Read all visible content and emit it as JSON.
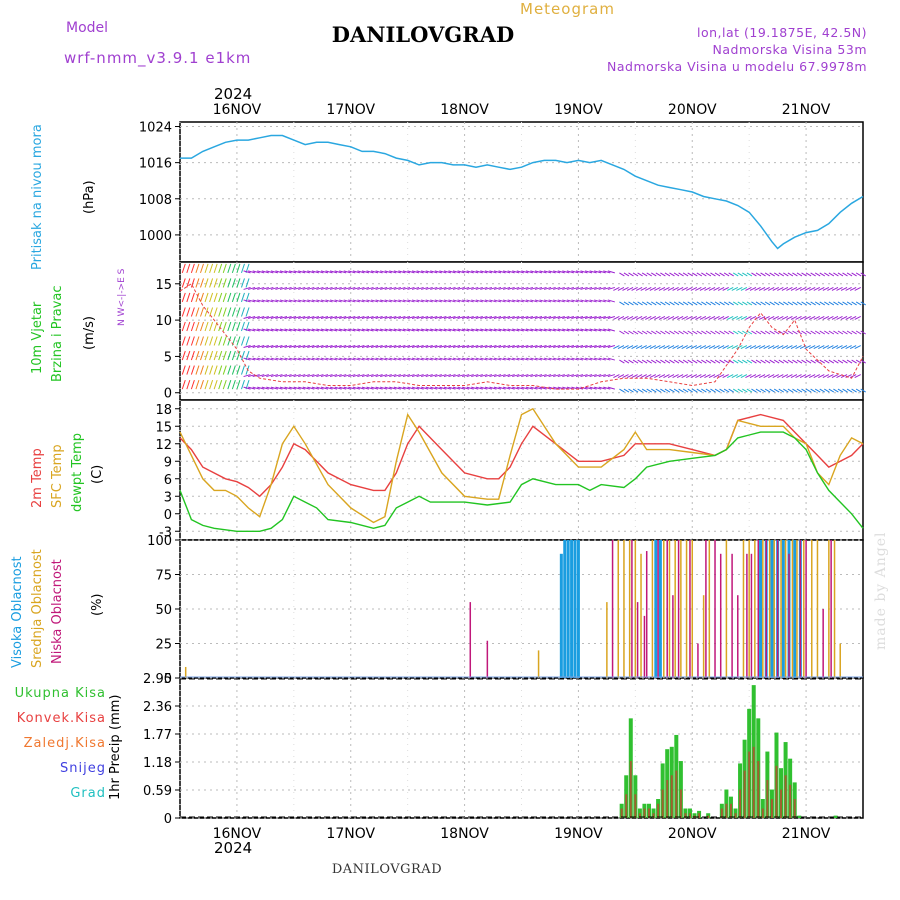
{
  "header": {
    "title": "DANILOVGRAD",
    "meteogram_label": "Meteogram",
    "model_label": "Model",
    "model_name": "wrf-nmm_v3.9.1 e1km",
    "location_coords": "lon,lat (19.1875E, 42.5N)",
    "elevation": "Nadmorska Visina 53m",
    "model_elevation": "Nadmorska Visina u modelu 67.9978m",
    "year_top": "2024",
    "year_bottom": "2024"
  },
  "footer": {
    "station_name": "DANILOVGRAD",
    "watermark": "made by Angel"
  },
  "colors": {
    "pressure": "#2aa7e0",
    "temp2m": "#e84040",
    "sfc_temp": "#d9a520",
    "dewpt": "#22c422",
    "high_cloud": "#1a9de0",
    "mid_cloud": "#d9a520",
    "low_cloud": "#c0187a",
    "total_precip": "#30c030",
    "conv_precip": "#e84040",
    "freezing": "#f07830",
    "snow": "#4040e0",
    "hail": "#20c0c0",
    "wind_purple": "#9b20d0"
  },
  "chart_data": [
    {
      "type": "line",
      "name": "pressure",
      "ylabel_main": "Pritisak na nivou mora",
      "ylabel_unit": "(hPa)",
      "yticks": [
        1000,
        1008,
        1016,
        1024
      ],
      "ylim": [
        994,
        1025
      ],
      "grid": true,
      "x_days": [
        "16NOV",
        "17NOV",
        "18NOV",
        "19NOV",
        "20NOV",
        "21NOV"
      ],
      "x": [
        15.5,
        15.6,
        15.7,
        15.8,
        15.9,
        16.0,
        16.1,
        16.2,
        16.3,
        16.4,
        16.5,
        16.6,
        16.7,
        16.8,
        16.9,
        17.0,
        17.1,
        17.2,
        17.3,
        17.4,
        17.5,
        17.6,
        17.7,
        17.8,
        17.9,
        18.0,
        18.1,
        18.2,
        18.3,
        18.4,
        18.5,
        18.6,
        18.7,
        18.8,
        18.9,
        19.0,
        19.1,
        19.2,
        19.3,
        19.4,
        19.5,
        19.6,
        19.7,
        19.8,
        19.9,
        20.0,
        20.1,
        20.2,
        20.3,
        20.4,
        20.5,
        20.6,
        20.7,
        20.75,
        20.8,
        20.9,
        21.0,
        21.1,
        21.2,
        21.3,
        21.4,
        21.5
      ],
      "values": [
        1017,
        1017,
        1018.5,
        1019.5,
        1020.5,
        1021,
        1021,
        1021.5,
        1022,
        1022,
        1021,
        1020,
        1020.5,
        1020.5,
        1020,
        1019.5,
        1018.5,
        1018.5,
        1018,
        1017,
        1016.5,
        1015.5,
        1016,
        1016,
        1015.5,
        1015.5,
        1015,
        1015.5,
        1015,
        1014.5,
        1015,
        1016,
        1016.5,
        1016.5,
        1016,
        1016.5,
        1016,
        1016.5,
        1015.5,
        1014.5,
        1013,
        1012,
        1011,
        1010.5,
        1010,
        1009.5,
        1008.5,
        1008,
        1007.5,
        1006.5,
        1005,
        1002,
        998.5,
        997,
        998,
        999.5,
        1000.5,
        1001,
        1002.5,
        1005,
        1007,
        1008.5
      ]
    },
    {
      "type": "line",
      "name": "wind",
      "ylabel_main": "10m Vjetar",
      "ylabel_sub": "Brzina i Pravac",
      "ylabel_unit": "(m/s)",
      "compass": "N W<-|->E S",
      "yticks": [
        0,
        5,
        10,
        15
      ],
      "ylim": [
        -1,
        18
      ],
      "x": [
        15.5,
        15.6,
        15.7,
        15.8,
        15.9,
        16.0,
        16.1,
        16.2,
        16.4,
        16.6,
        16.8,
        17.0,
        17.2,
        17.4,
        17.6,
        17.8,
        18.0,
        18.2,
        18.4,
        18.6,
        18.8,
        19.0,
        19.2,
        19.4,
        19.6,
        19.8,
        20.0,
        20.2,
        20.4,
        20.5,
        20.6,
        20.7,
        20.8,
        20.9,
        21.0,
        21.2,
        21.4,
        21.5
      ],
      "speed": [
        14,
        15,
        12,
        10,
        8,
        6,
        3,
        2,
        1.5,
        1.5,
        1,
        1,
        1.5,
        1.5,
        1,
        1,
        1,
        1.5,
        1,
        1,
        0.5,
        0.5,
        1.5,
        2,
        2,
        1.5,
        1,
        1.5,
        6,
        9,
        11,
        9,
        8,
        10,
        6,
        3,
        2,
        5
      ]
    },
    {
      "type": "line",
      "name": "temperature",
      "ylabel_lines": [
        "2m Temp",
        "SFC Temp",
        "dewpt Temp"
      ],
      "ylabel_unit": "(C)",
      "yticks": [
        -3,
        0,
        3,
        6,
        9,
        12,
        15,
        18
      ],
      "ylim": [
        -4.5,
        19.5
      ],
      "series": [
        {
          "name": "2m Temp",
          "x": [
            15.5,
            15.6,
            15.7,
            15.9,
            16.0,
            16.1,
            16.2,
            16.3,
            16.4,
            16.5,
            16.6,
            16.8,
            17.0,
            17.2,
            17.3,
            17.4,
            17.5,
            17.6,
            17.8,
            18.0,
            18.2,
            18.3,
            18.4,
            18.5,
            18.6,
            18.8,
            19.0,
            19.2,
            19.4,
            19.5,
            19.6,
            19.8,
            20.0,
            20.2,
            20.3,
            20.4,
            20.6,
            20.8,
            20.9,
            21.0,
            21.1,
            21.2,
            21.3,
            21.4,
            21.5
          ],
          "values": [
            13,
            11,
            8,
            6,
            5.5,
            4.5,
            3,
            5,
            8,
            12,
            11,
            7,
            5,
            4,
            4,
            7,
            12,
            15,
            11,
            7,
            6,
            6,
            8,
            12,
            15,
            12,
            9,
            9,
            10,
            12,
            12,
            12,
            11,
            10,
            11,
            16,
            17,
            16,
            14,
            12,
            10,
            8,
            9,
            10,
            12
          ]
        },
        {
          "name": "SFC Temp",
          "x": [
            15.5,
            15.6,
            15.7,
            15.8,
            15.9,
            16.0,
            16.1,
            16.2,
            16.3,
            16.4,
            16.5,
            16.6,
            16.8,
            17.0,
            17.2,
            17.3,
            17.4,
            17.5,
            17.6,
            17.8,
            18.0,
            18.2,
            18.3,
            18.4,
            18.5,
            18.6,
            18.8,
            19.0,
            19.2,
            19.4,
            19.5,
            19.6,
            19.8,
            20.0,
            20.2,
            20.3,
            20.4,
            20.6,
            20.8,
            20.9,
            21.0,
            21.1,
            21.2,
            21.3,
            21.4,
            21.5
          ],
          "values": [
            14,
            10,
            6,
            4,
            4,
            3,
            1,
            -0.5,
            5,
            12,
            15,
            12,
            5,
            1,
            -1.5,
            -0.5,
            9,
            17,
            14,
            7,
            3,
            2.5,
            2.5,
            10,
            17,
            18,
            12,
            8,
            8,
            11,
            14,
            11,
            11,
            10.5,
            10,
            11,
            16,
            15,
            15,
            13,
            12,
            7,
            5,
            10,
            13,
            12
          ]
        },
        {
          "name": "dewpt Temp",
          "x": [
            15.5,
            15.6,
            15.7,
            15.8,
            16.0,
            16.2,
            16.3,
            16.4,
            16.5,
            16.6,
            16.7,
            16.8,
            17.0,
            17.2,
            17.3,
            17.4,
            17.5,
            17.6,
            17.7,
            17.8,
            18.0,
            18.2,
            18.4,
            18.5,
            18.6,
            18.8,
            19.0,
            19.1,
            19.2,
            19.4,
            19.5,
            19.6,
            19.8,
            20.0,
            20.2,
            20.3,
            20.4,
            20.5,
            20.6,
            20.7,
            20.8,
            20.9,
            21.0,
            21.1,
            21.2,
            21.3,
            21.4,
            21.5
          ],
          "values": [
            4,
            -1,
            -2,
            -2.5,
            -3,
            -3,
            -2.5,
            -1,
            3,
            2,
            1,
            -1,
            -1.5,
            -2.5,
            -2,
            1,
            2,
            3,
            2,
            2,
            2,
            1.5,
            2,
            5,
            6,
            5,
            5,
            4,
            5,
            4.5,
            6,
            8,
            9,
            9.5,
            10,
            11,
            13,
            13.5,
            14,
            14,
            14,
            13,
            11,
            7,
            4,
            2,
            0,
            -2.5
          ]
        }
      ]
    },
    {
      "type": "bar",
      "name": "clouds",
      "ylabel_lines": [
        "Visoka Oblacnost",
        "Srednja Oblacnost",
        "Niska Oblacnost"
      ],
      "ylabel_unit": "(%)",
      "yticks": [
        0,
        25,
        50,
        75,
        100
      ],
      "ylim": [
        0,
        100
      ],
      "series": [
        {
          "name": "Visoka Oblacnost",
          "x": [
            18.85,
            18.88,
            18.91,
            18.94,
            18.97,
            19.0,
            19.68,
            19.72,
            20.6,
            20.65,
            20.7,
            20.75,
            20.8,
            20.85,
            20.9,
            20.95
          ],
          "values": [
            90,
            100,
            100,
            100,
            100,
            100,
            100,
            100,
            100,
            100,
            100,
            100,
            100,
            100,
            100,
            100
          ]
        },
        {
          "name": "Srednja Oblacnost",
          "x": [
            15.55,
            18.65,
            19.25,
            19.35,
            19.4,
            19.45,
            19.5,
            19.55,
            19.65,
            19.75,
            19.8,
            19.85,
            19.9,
            19.95,
            20.0,
            20.1,
            20.15,
            20.3,
            20.45,
            20.5,
            20.55,
            20.62,
            20.68,
            20.72,
            20.78,
            20.82,
            20.88,
            20.92,
            20.98,
            21.05,
            21.1,
            21.2,
            21.25,
            21.3
          ],
          "values": [
            8,
            20,
            55,
            100,
            100,
            100,
            100,
            90,
            100,
            100,
            100,
            100,
            100,
            100,
            100,
            60,
            100,
            100,
            100,
            100,
            100,
            100,
            100,
            100,
            100,
            100,
            100,
            100,
            100,
            100,
            100,
            100,
            100,
            25
          ]
        },
        {
          "name": "Niska Oblacnost",
          "x": [
            18.05,
            18.2,
            19.3,
            19.47,
            19.52,
            19.58,
            19.6,
            19.7,
            19.78,
            19.83,
            19.88,
            19.98,
            20.05,
            20.12,
            20.2,
            20.25,
            20.35,
            20.4,
            20.48,
            20.52,
            20.58,
            20.65,
            20.75,
            20.85,
            20.95,
            21.0,
            21.15,
            21.22
          ],
          "values": [
            55,
            27,
            100,
            100,
            55,
            45,
            92,
            100,
            100,
            60,
            100,
            100,
            25,
            100,
            100,
            90,
            90,
            60,
            90,
            90,
            100,
            100,
            100,
            90,
            100,
            100,
            50,
            100
          ]
        }
      ]
    },
    {
      "type": "bar",
      "name": "precipitation",
      "ylabel_main": "1hr Precip",
      "ylabel_unit": "(mm)",
      "legend": [
        "Ukupna Kisa",
        "Konvek.Kisa",
        "Zaledj.Kisa",
        "Snijeg",
        "Grad"
      ],
      "yticks": [
        0,
        0.59,
        1.18,
        1.77,
        2.36,
        2.95
      ],
      "ylim": [
        0,
        2.95
      ],
      "x": [
        19.38,
        19.42,
        19.46,
        19.5,
        19.54,
        19.58,
        19.62,
        19.66,
        19.7,
        19.74,
        19.78,
        19.82,
        19.86,
        19.9,
        19.94,
        19.98,
        20.02,
        20.06,
        20.1,
        20.14,
        20.18,
        20.22,
        20.26,
        20.3,
        20.34,
        20.38,
        20.42,
        20.46,
        20.5,
        20.54,
        20.58,
        20.62,
        20.66,
        20.7,
        20.74,
        20.78,
        20.82,
        20.86,
        20.9,
        20.94,
        20.98,
        21.02,
        21.06,
        21.1,
        21.14,
        21.18,
        21.22,
        21.26,
        21.3
      ],
      "total": [
        0.3,
        0.9,
        2.1,
        0.9,
        0.2,
        0.3,
        0.3,
        0.2,
        0.4,
        1.15,
        1.45,
        1.5,
        1.75,
        1.2,
        0.2,
        0.2,
        0.1,
        0.15,
        0,
        0.1,
        0,
        0,
        0.3,
        0.6,
        0.45,
        0.2,
        1.15,
        1.65,
        2.3,
        2.8,
        2.1,
        0.4,
        1.4,
        0.6,
        1.8,
        1.05,
        1.6,
        1.25,
        0.75,
        0.05,
        0,
        0,
        0,
        0,
        0,
        0,
        0,
        0.05,
        0
      ],
      "convective": [
        0.2,
        0.5,
        1.2,
        0.5,
        0.1,
        0.2,
        0.2,
        0.1,
        0.3,
        0.6,
        0.8,
        0.9,
        1.0,
        0.6,
        0.1,
        0.1,
        0.05,
        0.1,
        0,
        0.05,
        0,
        0,
        0.2,
        0.3,
        0.3,
        0.1,
        0.6,
        1.0,
        1.4,
        1.5,
        1.2,
        0.2,
        0.8,
        0.4,
        1.1,
        0.6,
        0.9,
        0.7,
        0.4,
        0,
        0,
        0,
        0,
        0,
        0,
        0,
        0,
        0,
        0
      ]
    }
  ]
}
